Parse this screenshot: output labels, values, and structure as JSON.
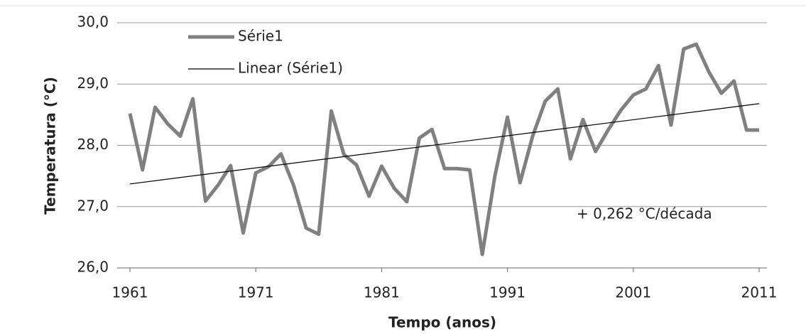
{
  "chart_data": {
    "type": "line",
    "x_label": "Tempo (anos)",
    "y_label": "Temperatura (°C)",
    "annotation": "+ 0,262 °C/década",
    "x": [
      1961,
      1962,
      1963,
      1964,
      1965,
      1966,
      1967,
      1968,
      1969,
      1970,
      1971,
      1972,
      1973,
      1974,
      1975,
      1976,
      1977,
      1978,
      1979,
      1980,
      1981,
      1982,
      1983,
      1984,
      1985,
      1986,
      1987,
      1988,
      1989,
      1990,
      1991,
      1992,
      1993,
      1994,
      1995,
      1996,
      1997,
      1998,
      1999,
      2000,
      2001,
      2002,
      2003,
      2004,
      2005,
      2006,
      2007,
      2008,
      2009,
      2010,
      2011
    ],
    "series": [
      {
        "name": "Série1",
        "color": "#808080",
        "values": [
          28.52,
          27.6,
          28.62,
          28.35,
          28.15,
          28.76,
          27.09,
          27.35,
          27.67,
          26.57,
          27.55,
          27.65,
          27.86,
          27.35,
          26.65,
          26.55,
          28.56,
          27.85,
          27.68,
          27.17,
          27.66,
          27.3,
          27.08,
          28.12,
          28.26,
          27.62,
          27.62,
          27.6,
          26.22,
          27.5,
          28.46,
          27.39,
          28.15,
          28.72,
          28.92,
          27.78,
          28.42,
          27.9,
          28.25,
          28.57,
          28.82,
          28.92,
          29.3,
          28.33,
          29.57,
          29.65,
          29.2,
          28.85,
          29.05,
          28.25,
          28.25
        ]
      },
      {
        "name": "Linear (Série1)",
        "color": "#000000",
        "x": [
          1961,
          2011
        ],
        "values": [
          27.37,
          28.68
        ]
      }
    ],
    "xlim": [
      1961,
      2011
    ],
    "xticks": [
      1961,
      1971,
      1981,
      1991,
      2001,
      2011
    ],
    "ylim": [
      26,
      30
    ],
    "yticks": [
      {
        "value": 26,
        "label": "26,0"
      },
      {
        "value": 27,
        "label": "27,0"
      },
      {
        "value": 28,
        "label": "28,0"
      },
      {
        "value": 29,
        "label": "29,0"
      },
      {
        "value": 30,
        "label": "30,0"
      }
    ],
    "grid": true,
    "legend": "upper left"
  }
}
